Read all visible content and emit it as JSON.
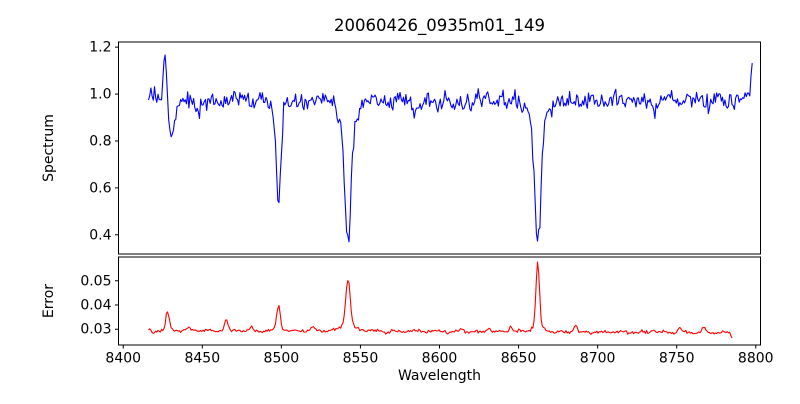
{
  "figure": {
    "background": "#ffffff",
    "frame_color": "#000000"
  },
  "axes": {
    "x": {
      "lim": [
        8397,
        8803
      ],
      "ticks": [
        8400,
        8450,
        8500,
        8550,
        8600,
        8650,
        8700,
        8750,
        8800
      ],
      "tick_labels": [
        "8400",
        "8450",
        "8500",
        "8550",
        "8600",
        "8650",
        "8700",
        "8750",
        "8800"
      ]
    }
  },
  "chart_data": [
    {
      "type": "line",
      "title": "20060426_0935m01_149",
      "xlabel": "",
      "ylabel": "Spectrum",
      "legend": "none",
      "grid": false,
      "color": "#0000ff",
      "xlim": [
        8397,
        8803
      ],
      "ylim": [
        0.318,
        1.222
      ],
      "yticks": [
        0.4,
        0.6,
        0.8,
        1.0,
        1.2
      ],
      "ytick_labels": [
        "0.4",
        "0.6",
        "0.8",
        "1.0",
        "1.2"
      ],
      "notable_points": {
        "continuum_level": 0.97,
        "absorption_minima": [
          [
            8498,
            0.57
          ],
          [
            8542,
            0.35
          ],
          [
            8662,
            0.35
          ]
        ],
        "emission_spikes": [
          [
            8427,
            1.19
          ],
          [
            8798,
            1.16
          ]
        ],
        "small_dips": [
          [
            8430,
            0.84
          ],
          [
            8585,
            0.91
          ],
          [
            8609,
            0.88
          ],
          [
            8736,
            0.89
          ]
        ]
      },
      "series": {
        "name": "spectrum",
        "x_start": 8416,
        "x_end": 8798,
        "step": 0.75,
        "seed": 20060426,
        "baseline": 0.972,
        "slope": 0,
        "noise_sigma": 0.02,
        "wiggles": [
          {
            "period": 17,
            "amp": 0.008
          },
          {
            "period": 5.3,
            "amp": 0.006
          }
        ],
        "features": [
          {
            "center": 8426.5,
            "amp": 0.215,
            "sigma": 1.0
          },
          {
            "center": 8430.5,
            "amp": -0.135,
            "sigma": 1.7
          },
          {
            "center": 8447,
            "amp": -0.02,
            "sigma": 5
          },
          {
            "center": 8498.2,
            "amp": -0.36,
            "sigma": 1.5
          },
          {
            "center": 8498.2,
            "amp": -0.045,
            "sigma": 3.5
          },
          {
            "center": 8542.1,
            "amp": -0.51,
            "sigma": 1.9
          },
          {
            "center": 8542.1,
            "amp": -0.115,
            "sigma": 4.5
          },
          {
            "center": 8585,
            "amp": -0.04,
            "sigma": 1.5
          },
          {
            "center": 8609,
            "amp": -0.055,
            "sigma": 1.8
          },
          {
            "center": 8662.1,
            "amp": -0.5,
            "sigma": 1.9
          },
          {
            "center": 8662.1,
            "amp": -0.115,
            "sigma": 4.5
          },
          {
            "center": 8736,
            "amp": -0.05,
            "sigma": 1.5
          },
          {
            "center": 8798,
            "amp": 0.19,
            "sigma": 0.9
          }
        ]
      }
    },
    {
      "type": "line",
      "title": "",
      "xlabel": "Wavelength",
      "ylabel": "Error",
      "legend": "none",
      "grid": false,
      "color": "#ff0000",
      "xlim": [
        8397,
        8803
      ],
      "ylim": [
        0.0235,
        0.0598
      ],
      "yticks": [
        0.03,
        0.04,
        0.05
      ],
      "ytick_labels": [
        "0.03",
        "0.04",
        "0.05"
      ],
      "notable_points": {
        "baseline_level": 0.0295,
        "peaks": [
          [
            8428,
            0.037
          ],
          [
            8465,
            0.034
          ],
          [
            8498,
            0.04
          ],
          [
            8542,
            0.05
          ],
          [
            8662,
            0.058
          ]
        ]
      },
      "series": {
        "name": "error",
        "x_start": 8416,
        "x_end": 8785,
        "step": 0.75,
        "seed": 935149,
        "baseline": 0.0296,
        "slope": -2.6e-06,
        "noise_sigma": 0.00032,
        "wiggles": [
          {
            "period": 13,
            "amp": 0.0003
          }
        ],
        "features": [
          {
            "center": 8419,
            "amp": -0.0017,
            "sigma": 0.8
          },
          {
            "center": 8428,
            "amp": 0.0078,
            "sigma": 1.1
          },
          {
            "center": 8441,
            "amp": 0.0013,
            "sigma": 1.0
          },
          {
            "center": 8465,
            "amp": 0.0047,
            "sigma": 1.0
          },
          {
            "center": 8481,
            "amp": 0.0011,
            "sigma": 1.0
          },
          {
            "center": 8498.2,
            "amp": 0.0106,
            "sigma": 1.2
          },
          {
            "center": 8520,
            "amp": 0.0011,
            "sigma": 1.4
          },
          {
            "center": 8542.1,
            "amp": 0.0193,
            "sigma": 1.4
          },
          {
            "center": 8542.1,
            "amp": 0.0022,
            "sigma": 5
          },
          {
            "center": 8614,
            "amp": 0.0012,
            "sigma": 1.2
          },
          {
            "center": 8631,
            "amp": 0.0016,
            "sigma": 1.2
          },
          {
            "center": 8645,
            "amp": 0.0026,
            "sigma": 0.9
          },
          {
            "center": 8662.1,
            "amp": 0.0262,
            "sigma": 1.1
          },
          {
            "center": 8662.1,
            "amp": 0.0022,
            "sigma": 4
          },
          {
            "center": 8686,
            "amp": 0.0028,
            "sigma": 1.0
          },
          {
            "center": 8735,
            "amp": 0.0013,
            "sigma": 1.4
          },
          {
            "center": 8752,
            "amp": 0.0017,
            "sigma": 1.2
          },
          {
            "center": 8767,
            "amp": 0.0019,
            "sigma": 1.0
          },
          {
            "center": 8785,
            "amp": -0.0024,
            "sigma": 0.7
          }
        ]
      }
    }
  ]
}
